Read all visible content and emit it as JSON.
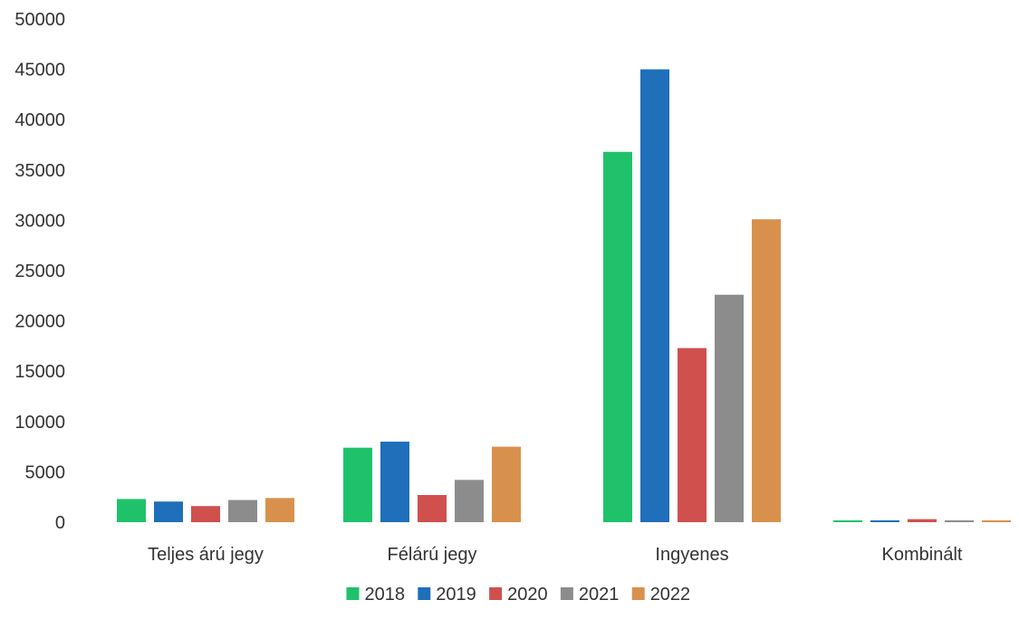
{
  "chart_data": {
    "type": "bar",
    "title": "",
    "xlabel": "",
    "ylabel": "",
    "categories": [
      "Teljes árú jegy",
      "Félárú jegy",
      "Ingyenes",
      "Kombinált"
    ],
    "series": [
      {
        "name": "2018",
        "color": "#1fc26b",
        "values": [
          2300,
          7400,
          36800,
          150
        ]
      },
      {
        "name": "2019",
        "color": "#1f6fba",
        "values": [
          2050,
          8000,
          45000,
          100
        ]
      },
      {
        "name": "2020",
        "color": "#d0504e",
        "values": [
          1600,
          2700,
          17300,
          300
        ]
      },
      {
        "name": "2021",
        "color": "#8c8c8c",
        "values": [
          2200,
          4200,
          22600,
          50
        ]
      },
      {
        "name": "2022",
        "color": "#d8914c",
        "values": [
          2400,
          7500,
          30100,
          80
        ]
      }
    ],
    "ylim": [
      0,
      50000
    ],
    "yticks": [
      0,
      5000,
      10000,
      15000,
      20000,
      25000,
      30000,
      35000,
      40000,
      45000,
      50000
    ],
    "grid": false,
    "legend_position": "bottom"
  }
}
